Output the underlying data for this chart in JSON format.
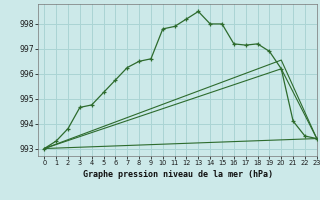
{
  "title": "Graphe pression niveau de la mer (hPa)",
  "background_color": "#cce9e9",
  "grid_color": "#aad4d4",
  "line_color": "#2d6b2d",
  "xlim": [
    -0.5,
    23
  ],
  "ylim": [
    992.7,
    998.8
  ],
  "yticks": [
    993,
    994,
    995,
    996,
    997,
    998
  ],
  "xticks": [
    0,
    1,
    2,
    3,
    4,
    5,
    6,
    7,
    8,
    9,
    10,
    11,
    12,
    13,
    14,
    15,
    16,
    17,
    18,
    19,
    20,
    21,
    22,
    23
  ],
  "series1_x": [
    0,
    1,
    2,
    3,
    4,
    5,
    6,
    7,
    8,
    9,
    10,
    11,
    12,
    13,
    14,
    15,
    16,
    17,
    18,
    19,
    20,
    21,
    22,
    23
  ],
  "series1_y": [
    993.0,
    993.3,
    993.8,
    994.65,
    994.75,
    995.25,
    995.75,
    996.25,
    996.5,
    996.6,
    997.8,
    997.9,
    998.2,
    998.5,
    998.0,
    998.0,
    997.2,
    997.15,
    997.2,
    996.9,
    996.2,
    994.1,
    993.5,
    993.4
  ],
  "series2_x": [
    0,
    23
  ],
  "series2_y": [
    993.0,
    993.4
  ],
  "series3_x": [
    0,
    20,
    23
  ],
  "series3_y": [
    993.0,
    996.2,
    993.4
  ],
  "series4_x": [
    0,
    20,
    23
  ],
  "series4_y": [
    993.0,
    996.55,
    993.4
  ]
}
